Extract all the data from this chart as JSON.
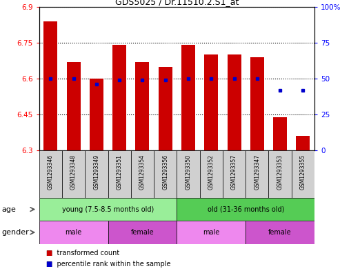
{
  "title": "GDS5025 / Dr.11510.2.S1_at",
  "samples": [
    "GSM1293346",
    "GSM1293348",
    "GSM1293349",
    "GSM1293351",
    "GSM1293354",
    "GSM1293356",
    "GSM1293350",
    "GSM1293352",
    "GSM1293357",
    "GSM1293347",
    "GSM1293353",
    "GSM1293355"
  ],
  "transformed_count": [
    6.84,
    6.67,
    6.6,
    6.74,
    6.67,
    6.65,
    6.74,
    6.7,
    6.7,
    6.69,
    6.44,
    6.36
  ],
  "percentile_rank": [
    50,
    50,
    46,
    49,
    49,
    49,
    50,
    50,
    50,
    50,
    42,
    42
  ],
  "ylim_left": [
    6.3,
    6.9
  ],
  "ylim_right": [
    0,
    100
  ],
  "yticks_left": [
    6.3,
    6.45,
    6.6,
    6.75,
    6.9
  ],
  "yticks_right": [
    0,
    25,
    50,
    75,
    100
  ],
  "ytick_labels_left": [
    "6.3",
    "6.45",
    "6.6",
    "6.75",
    "6.9"
  ],
  "ytick_labels_right": [
    "0",
    "25",
    "50",
    "75",
    "100%"
  ],
  "bar_color": "#cc0000",
  "dot_color": "#0000cc",
  "age_groups": [
    {
      "label": "young (7.5-8.5 months old)",
      "start": 0,
      "end": 6,
      "color": "#99ee99"
    },
    {
      "label": "old (31-36 months old)",
      "start": 6,
      "end": 12,
      "color": "#55cc55"
    }
  ],
  "gender_groups": [
    {
      "label": "male",
      "start": 0,
      "end": 3,
      "color": "#ee88ee"
    },
    {
      "label": "female",
      "start": 3,
      "end": 6,
      "color": "#cc55cc"
    },
    {
      "label": "male",
      "start": 6,
      "end": 9,
      "color": "#ee88ee"
    },
    {
      "label": "female",
      "start": 9,
      "end": 12,
      "color": "#cc55cc"
    }
  ],
  "age_label": "age",
  "gender_label": "gender",
  "legend_items": [
    {
      "label": "transformed count",
      "color": "#cc0000"
    },
    {
      "label": "percentile rank within the sample",
      "color": "#0000cc"
    }
  ],
  "grid_linestyle": ":",
  "grid_linewidth": 0.8,
  "bar_bottom": 6.3,
  "bar_width": 0.6,
  "xtick_bg": "#d0d0d0",
  "sample_fontsize": 5.5,
  "label_fontsize": 8,
  "tick_fontsize": 7.5,
  "title_fontsize": 9
}
